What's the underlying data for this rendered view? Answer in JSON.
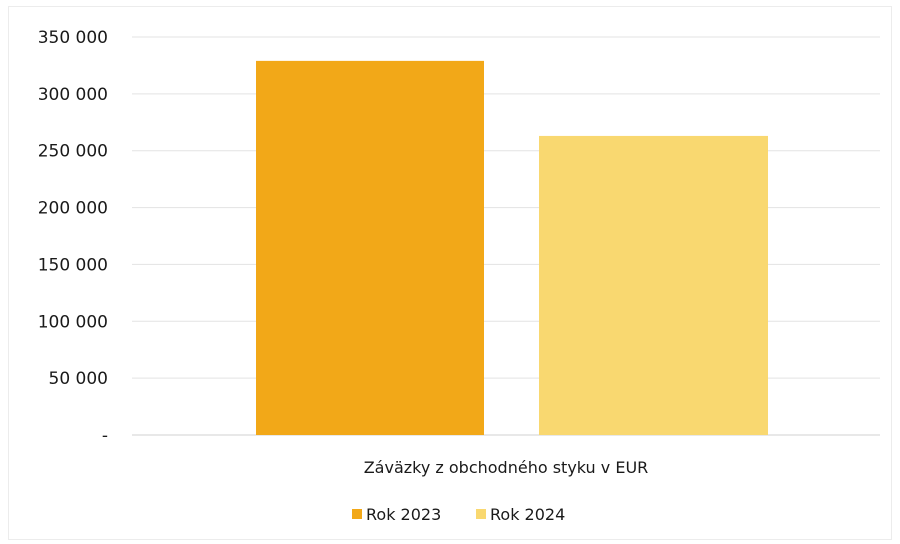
{
  "chart_data": {
    "type": "bar",
    "categories": [
      "Záväzky z obchodného styku v EUR"
    ],
    "series": [
      {
        "name": "Rok 2023",
        "values": [
          329000
        ],
        "color": "#F2A818"
      },
      {
        "name": "Rok 2024",
        "values": [
          263000
        ],
        "color": "#F9D870"
      }
    ],
    "yticks": [
      0,
      50000,
      100000,
      150000,
      200000,
      250000,
      300000,
      350000
    ],
    "ytick_labels": [
      "-",
      "50 000",
      "100 000",
      "150 000",
      "200 000",
      "250 000",
      "300 000",
      "350 000"
    ],
    "ylim": [
      0,
      350000
    ],
    "grid": true,
    "legend": "bottom",
    "title": "",
    "xlabel": "",
    "ylabel": ""
  }
}
